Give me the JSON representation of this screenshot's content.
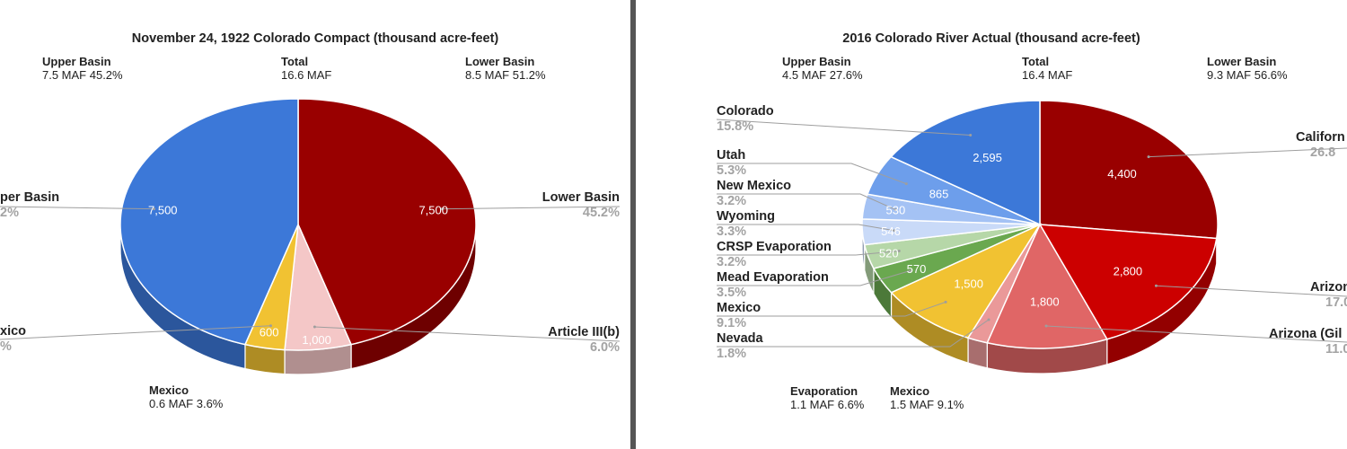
{
  "chart_data": [
    {
      "type": "pie",
      "title": "November 24, 1922 Colorado Compact (thousand acre-feet)",
      "summary": {
        "upper": {
          "label": "Upper Basin",
          "value": "7.5 MAF  45.2%"
        },
        "total": {
          "label": "Total",
          "value": "16.6 MAF"
        },
        "lower": {
          "label": "Lower Basin",
          "value": "8.5 MAF 51.2%"
        },
        "mexico": {
          "label": "Mexico",
          "value": "0.6 MAF  3.6%"
        }
      },
      "slices": [
        {
          "name": "Lower Basin",
          "value": 7500,
          "value_label": "7,500",
          "percent": "45.2%",
          "color": "#990000"
        },
        {
          "name": "Article III(b)",
          "value": 1000,
          "value_label": "1,000",
          "percent": "6.0%",
          "color": "#f4c7c7"
        },
        {
          "name": "Mexico",
          "value": 600,
          "value_label": "600",
          "percent": "3.6%",
          "color": "#f1c232"
        },
        {
          "name": "Upper Basin",
          "value": 7500,
          "value_label": "7,500",
          "percent": "45.2%",
          "color": "#3c78d8"
        }
      ],
      "side_labels": {
        "upper_basin": "per Basin",
        "upper_percent": "2%",
        "mexico": "xico",
        "mexico_percent": "%"
      }
    },
    {
      "type": "pie",
      "title": "2016 Colorado River Actual (thousand acre-feet)",
      "summary": {
        "upper": {
          "label": "Upper Basin",
          "value": "4.5 MAF  27.6%"
        },
        "total": {
          "label": "Total",
          "value": "16.4 MAF"
        },
        "lower": {
          "label": "Lower Basin",
          "value": "9.3 MAF 56.6%"
        },
        "evaporation": {
          "label": "Evaporation",
          "value": "1.1 MAF 6.6%"
        },
        "mexico": {
          "label": "Mexico",
          "value": "1.5 MAF  9.1%"
        }
      },
      "slices": [
        {
          "name": "California",
          "label_shown": "Californ",
          "value": 4400,
          "value_label": "4,400",
          "percent": "26.8",
          "color": "#990000"
        },
        {
          "name": "Arizona",
          "label_shown": "Arizon",
          "value": 2800,
          "value_label": "2,800",
          "percent": "17.0",
          "color": "#cc0000"
        },
        {
          "name": "Arizona (Gila)",
          "label_shown": "Arizona (Gil",
          "value": 1800,
          "value_label": "1,800",
          "percent": "11.0",
          "color": "#e06666"
        },
        {
          "name": "Nevada",
          "value": 300,
          "value_label": "",
          "percent": "1.8%",
          "color": "#ea9999"
        },
        {
          "name": "Mexico",
          "value": 1500,
          "value_label": "1,500",
          "percent": "9.1%",
          "color": "#f1c232"
        },
        {
          "name": "Mead Evaporation",
          "value": 570,
          "value_label": "570",
          "percent": "3.5%",
          "color": "#6aa84f"
        },
        {
          "name": "CRSP Evaporation",
          "value": 520,
          "value_label": "520",
          "percent": "3.2%",
          "color": "#b6d7a8"
        },
        {
          "name": "Wyoming",
          "value": 546,
          "value_label": "546",
          "percent": "3.3%",
          "color": "#c9daf8"
        },
        {
          "name": "New Mexico",
          "value": 530,
          "value_label": "530",
          "percent": "3.2%",
          "color": "#a4c2f4"
        },
        {
          "name": "Utah",
          "value": 865,
          "value_label": "865",
          "percent": "5.3%",
          "color": "#6d9eeb"
        },
        {
          "name": "Colorado",
          "value": 2595,
          "value_label": "2,595",
          "percent": "15.8%",
          "color": "#3c78d8"
        }
      ]
    }
  ]
}
